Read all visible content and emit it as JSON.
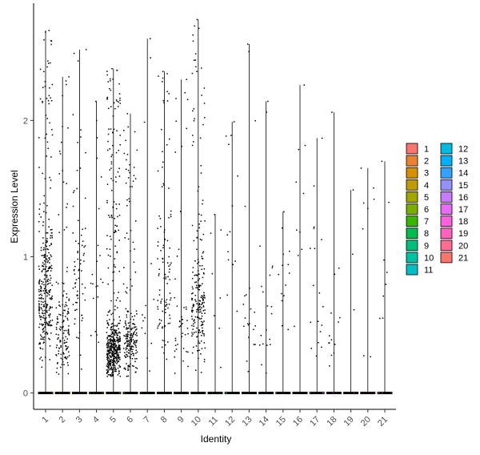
{
  "chart_data": {
    "type": "violin",
    "title": "",
    "xlabel": "Identity",
    "ylabel": "Expression Level",
    "categories": [
      "1",
      "2",
      "3",
      "4",
      "5",
      "6",
      "7",
      "8",
      "9",
      "10",
      "11",
      "12",
      "13",
      "14",
      "15",
      "16",
      "17",
      "18",
      "19",
      "20",
      "21"
    ],
    "y_ticks": [
      0,
      1,
      2
    ],
    "ylim": [
      -0.12,
      2.86
    ],
    "grid": false,
    "legend": {
      "placement": "right",
      "columns": 2,
      "entries": [
        "1",
        "2",
        "3",
        "4",
        "5",
        "6",
        "7",
        "8",
        "9",
        "10",
        "11",
        "12",
        "13",
        "14",
        "15",
        "16",
        "17",
        "18",
        "19",
        "20",
        "21"
      ],
      "colors": [
        "#F8766D",
        "#EA8331",
        "#D89000",
        "#C09B00",
        "#A3A500",
        "#7CAE00",
        "#39B600",
        "#00BB4E",
        "#00BF7D",
        "#00C1A3",
        "#00BFC4",
        "#00BAE0",
        "#00B0F6",
        "#35A2FF",
        "#9590FF",
        "#C77CFF",
        "#E76BF3",
        "#FA62DB",
        "#FF62BC",
        "#FF6C91",
        "#F8766D"
      ]
    },
    "series": [
      {
        "identity": "1",
        "max": 2.66,
        "frac_expressing": 0.34,
        "mode": 0.72,
        "n_points": 320
      },
      {
        "identity": "2",
        "max": 2.32,
        "frac_expressing": 0.22,
        "mode": 0.45,
        "n_points": 140
      },
      {
        "identity": "3",
        "max": 2.52,
        "frac_expressing": 0.12,
        "mode": 0.85,
        "n_points": 75
      },
      {
        "identity": "4",
        "max": 2.14,
        "frac_expressing": 0.04,
        "mode": 0.8,
        "n_points": 22
      },
      {
        "identity": "5",
        "max": 2.38,
        "frac_expressing": 0.45,
        "mode": 0.3,
        "n_points": 480
      },
      {
        "identity": "6",
        "max": 2.05,
        "frac_expressing": 0.28,
        "mode": 0.35,
        "n_points": 200
      },
      {
        "identity": "7",
        "max": 2.6,
        "frac_expressing": 0.03,
        "mode": 0.5,
        "n_points": 14
      },
      {
        "identity": "8",
        "max": 2.36,
        "frac_expressing": 0.18,
        "mode": 0.75,
        "n_points": 105
      },
      {
        "identity": "9",
        "max": 2.3,
        "frac_expressing": 0.08,
        "mode": 0.45,
        "n_points": 45
      },
      {
        "identity": "10",
        "max": 2.74,
        "frac_expressing": 0.3,
        "mode": 0.65,
        "n_points": 210
      },
      {
        "identity": "11",
        "max": 1.31,
        "frac_expressing": 0.02,
        "mode": 0.6,
        "n_points": 8
      },
      {
        "identity": "12",
        "max": 1.99,
        "frac_expressing": 0.03,
        "mode": 1.2,
        "n_points": 14
      },
      {
        "identity": "13",
        "max": 2.56,
        "frac_expressing": 0.04,
        "mode": 0.5,
        "n_points": 22
      },
      {
        "identity": "14",
        "max": 2.14,
        "frac_expressing": 0.04,
        "mode": 0.8,
        "n_points": 20
      },
      {
        "identity": "15",
        "max": 1.33,
        "frac_expressing": 0.03,
        "mode": 0.7,
        "n_points": 14
      },
      {
        "identity": "16",
        "max": 2.26,
        "frac_expressing": 0.02,
        "mode": 1.0,
        "n_points": 10
      },
      {
        "identity": "17",
        "max": 1.87,
        "frac_expressing": 0.03,
        "mode": 0.7,
        "n_points": 18
      },
      {
        "identity": "18",
        "max": 2.06,
        "frac_expressing": 0.03,
        "mode": 0.45,
        "n_points": 14
      },
      {
        "identity": "19",
        "max": 1.49,
        "frac_expressing": 0.01,
        "mode": 1.0,
        "n_points": 3
      },
      {
        "identity": "20",
        "max": 1.65,
        "frac_expressing": 0.02,
        "mode": 1.4,
        "n_points": 8
      },
      {
        "identity": "21",
        "max": 1.7,
        "frac_expressing": 0.02,
        "mode": 0.9,
        "n_points": 8
      }
    ]
  }
}
